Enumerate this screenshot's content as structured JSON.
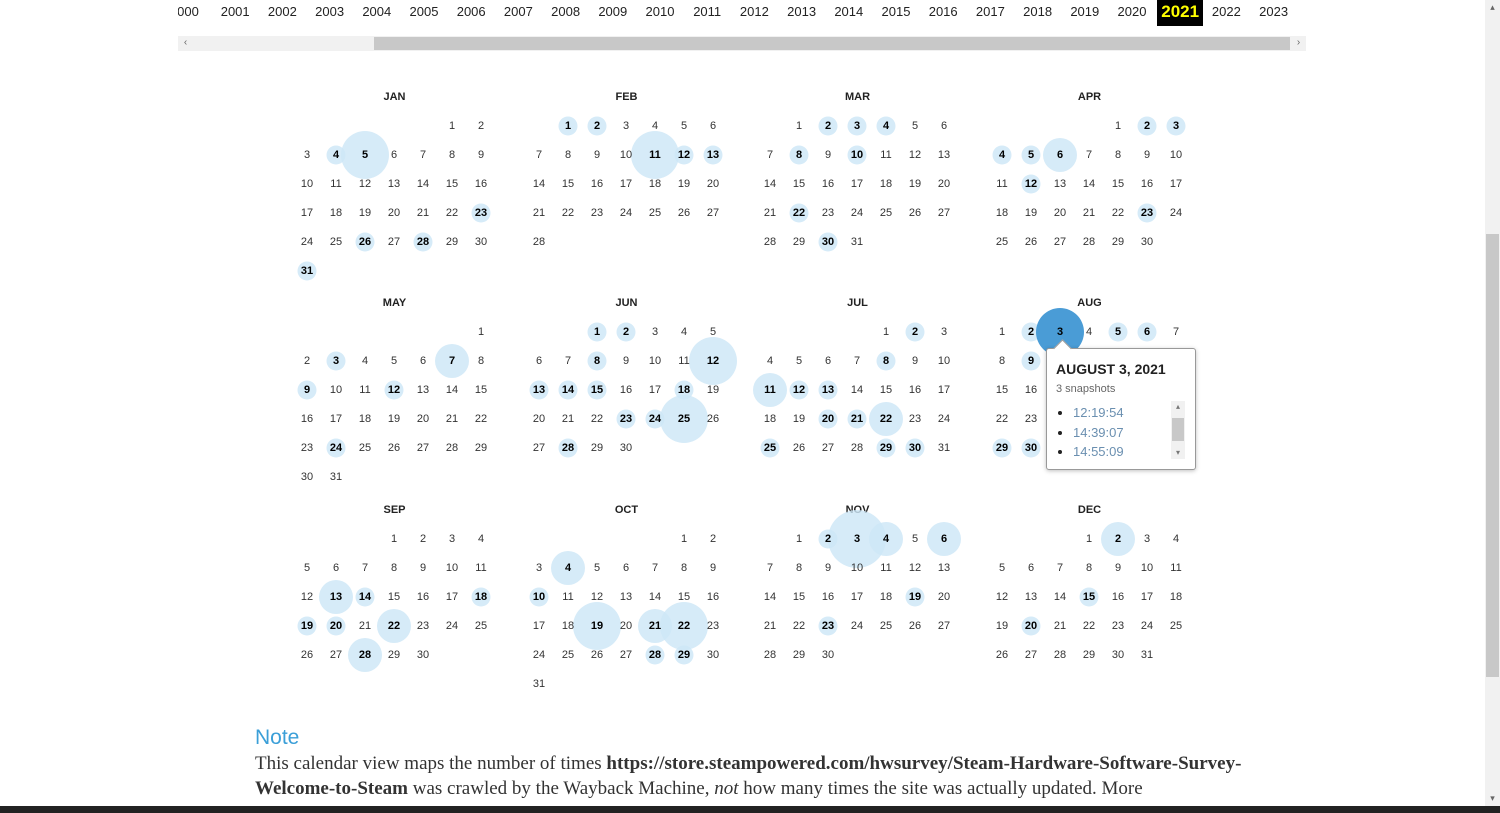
{
  "years": {
    "items": [
      "000",
      "2001",
      "2002",
      "2003",
      "2004",
      "2005",
      "2006",
      "2007",
      "2008",
      "2009",
      "2010",
      "2011",
      "2012",
      "2013",
      "2014",
      "2015",
      "2016",
      "2017",
      "2018",
      "2019",
      "2020",
      "2021",
      "2022",
      "2023"
    ],
    "selected": "2021"
  },
  "scrollbar": {
    "left_arrow": "‹",
    "right_arrow": "›",
    "up_arrow": "▴",
    "down_arrow": "▾"
  },
  "calendar": {
    "year": 2021,
    "months": [
      {
        "name": "JAN",
        "snapshots": {
          "4": 1,
          "5": 3,
          "23": 1,
          "26": 1,
          "28": 1,
          "31": 1
        }
      },
      {
        "name": "FEB",
        "snapshots": {
          "1": 1,
          "2": 1,
          "11": 3,
          "12": 1,
          "13": 1
        }
      },
      {
        "name": "MAR",
        "snapshots": {
          "2": 1,
          "3": 1,
          "4": 1,
          "8": 1,
          "10": 1,
          "22": 1,
          "30": 1
        }
      },
      {
        "name": "APR",
        "snapshots": {
          "2": 1,
          "3": 1,
          "4": 1,
          "5": 1,
          "6": 2,
          "12": 1,
          "23": 1
        }
      },
      {
        "name": "MAY",
        "snapshots": {
          "3": 1,
          "7": 2,
          "9": 1,
          "12": 1,
          "24": 1
        }
      },
      {
        "name": "JUN",
        "snapshots": {
          "1": 1,
          "2": 1,
          "8": 1,
          "12": 3,
          "13": 1,
          "14": 1,
          "15": 1,
          "18": 1,
          "23": 1,
          "24": 1,
          "25": 3,
          "28": 1
        }
      },
      {
        "name": "JUL",
        "snapshots": {
          "2": 1,
          "8": 1,
          "11": 2,
          "12": 1,
          "13": 1,
          "20": 1,
          "21": 1,
          "22": 2,
          "25": 1,
          "29": 1,
          "30": 1
        }
      },
      {
        "name": "AUG",
        "snapshots": {
          "2": 1,
          "3": 3,
          "5": 1,
          "6": 1,
          "9": 1,
          "29": 1,
          "30": 1
        }
      },
      {
        "name": "SEP",
        "snapshots": {
          "13": 2,
          "14": 1,
          "18": 1,
          "19": 1,
          "20": 1,
          "22": 2,
          "28": 2
        }
      },
      {
        "name": "OCT",
        "snapshots": {
          "4": 2,
          "10": 1,
          "19": 3,
          "21": 2,
          "22": 3,
          "28": 1,
          "29": 1
        }
      },
      {
        "name": "NOV",
        "snapshots": {
          "2": 1,
          "3": 4,
          "4": 2,
          "6": 2,
          "19": 1,
          "23": 1
        }
      },
      {
        "name": "DEC",
        "snapshots": {
          "2": 2,
          "15": 1,
          "20": 1
        }
      }
    ],
    "active": {
      "month": "AUG",
      "day": 3
    }
  },
  "colors": {
    "bubble": "#cde6f7",
    "bubble_active": "#4a9cd6",
    "selected_year_bg": "#000000",
    "selected_year_text": "#ffff00",
    "note_heading": "#3b9fd8"
  },
  "popup": {
    "title": "AUGUST 3, 2021",
    "count": "3 snapshots",
    "times": [
      "12:19:54",
      "14:39:07",
      "14:55:09"
    ]
  },
  "note": {
    "heading": "Note",
    "before": "This calendar view maps the number of times ",
    "url": "https://store.steampowered.com/hwsurvey/Steam-Hardware-Software-Survey-Welcome-to-Steam",
    "middle": " was crawled by the Wayback Machine, ",
    "emph": "not",
    "after": " how many times the site was actually updated. More"
  }
}
